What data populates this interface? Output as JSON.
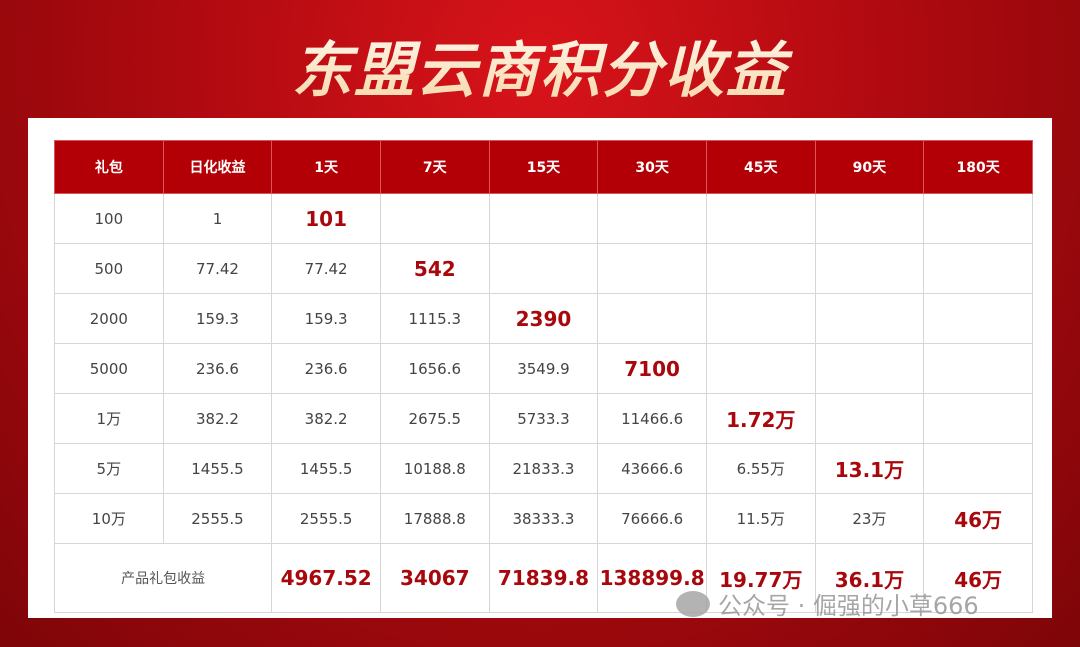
{
  "title": "东盟云商积分收益",
  "colors": {
    "header_bg": "#b30006",
    "highlight_text": "#a8070c"
  },
  "table": {
    "headers": [
      "礼包",
      "日化收益",
      "1天",
      "7天",
      "15天",
      "30天",
      "45天",
      "90天",
      "180天"
    ],
    "rows": [
      {
        "cells": [
          "100",
          "1",
          "101",
          "",
          "",
          "",
          "",
          "",
          ""
        ],
        "highlight": 2
      },
      {
        "cells": [
          "500",
          "77.42",
          "77.42",
          "542",
          "",
          "",
          "",
          "",
          ""
        ],
        "highlight": 3
      },
      {
        "cells": [
          "2000",
          "159.3",
          "159.3",
          "1115.3",
          "2390",
          "",
          "",
          "",
          ""
        ],
        "highlight": 4
      },
      {
        "cells": [
          "5000",
          "236.6",
          "236.6",
          "1656.6",
          "3549.9",
          "7100",
          "",
          "",
          ""
        ],
        "highlight": 5
      },
      {
        "cells": [
          "1万",
          "382.2",
          "382.2",
          "2675.5",
          "5733.3",
          "11466.6",
          "1.72万",
          "",
          ""
        ],
        "highlight": 6
      },
      {
        "cells": [
          "5万",
          "1455.5",
          "1455.5",
          "10188.8",
          "21833.3",
          "43666.6",
          "6.55万",
          "13.1万",
          ""
        ],
        "highlight": 7
      },
      {
        "cells": [
          "10万",
          "2555.5",
          "2555.5",
          "17888.8",
          "38333.3",
          "76666.6",
          "11.5万",
          "23万",
          "46万"
        ],
        "highlight": 8
      }
    ],
    "total": {
      "label": "产品礼包收益",
      "values": [
        "4967.52",
        "34067",
        "71839.8",
        "138899.8",
        "19.77万",
        "36.1万",
        "46万"
      ]
    }
  },
  "watermark": {
    "icon": "wechat-icon",
    "text": "公众号 · 倔强的小草666"
  }
}
